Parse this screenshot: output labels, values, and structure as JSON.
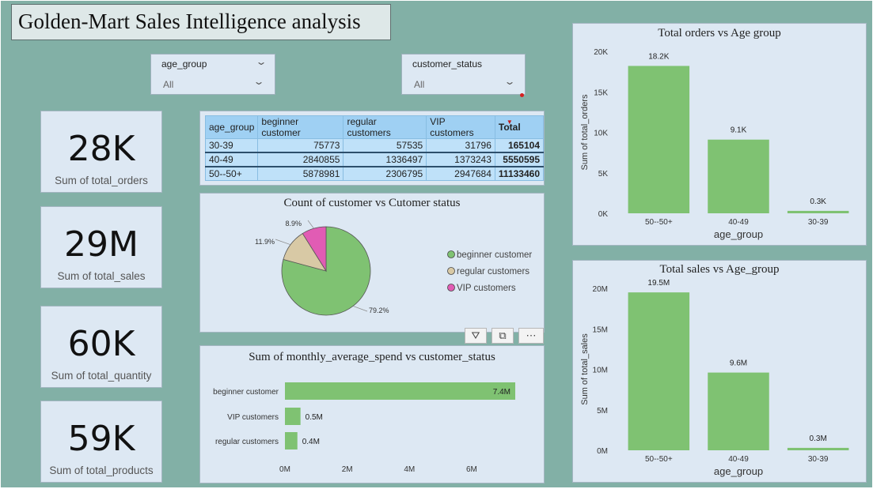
{
  "header": {
    "title": "Golden-Mart Sales Intelligence analysis"
  },
  "slicers": [
    {
      "label": "age_group",
      "value": "All"
    },
    {
      "label": "customer_status",
      "value": "All"
    }
  ],
  "kpis": [
    {
      "value": "28K",
      "caption": "Sum of total_orders"
    },
    {
      "value": "29M",
      "caption": "Sum of total_sales"
    },
    {
      "value": "60K",
      "caption": "Sum of total_quantity"
    },
    {
      "value": "59K",
      "caption": "Sum of total_products"
    }
  ],
  "matrix": {
    "headers": [
      "age_group",
      "beginner customer",
      "regular customers",
      "VIP customers",
      "Total"
    ],
    "rows": [
      [
        "30-39",
        "75773",
        "57535",
        "31796",
        "165104"
      ],
      [
        "40-49",
        "2840855",
        "1336497",
        "1373243",
        "5550595"
      ],
      [
        "50--50+",
        "5878981",
        "2306795",
        "2947684",
        "11133460"
      ]
    ]
  },
  "visual_controls": {
    "filter_icon": "filter-icon",
    "focus_icon": "focus-mode-icon",
    "more_icon": "more-options-icon"
  },
  "colors": {
    "green": "#7fc272",
    "tan": "#d8c9a5",
    "pink": "#e15cb4",
    "panel": "#dde8f3",
    "background": "#82b0a6"
  },
  "chart_data": [
    {
      "type": "bar",
      "title": "Total orders vs Age group",
      "xlabel": "age_group",
      "ylabel": "Sum of total_orders",
      "categories": [
        "50--50+",
        "40-49",
        "30-39"
      ],
      "values": [
        18200,
        9100,
        300
      ],
      "data_labels": [
        "18.2K",
        "9.1K",
        "0.3K"
      ],
      "y_ticks": [
        0,
        5000,
        10000,
        15000,
        20000
      ],
      "y_tick_labels": [
        "0K",
        "5K",
        "10K",
        "15K",
        "20K"
      ],
      "ylim": [
        0,
        20000
      ],
      "grid": false
    },
    {
      "type": "bar",
      "title": "Total sales vs Age_group",
      "xlabel": "age_group",
      "ylabel": "Sum of total_sales",
      "categories": [
        "50--50+",
        "40-49",
        "30-39"
      ],
      "values": [
        19500000,
        9600000,
        300000
      ],
      "data_labels": [
        "19.5M",
        "9.6M",
        "0.3M"
      ],
      "y_ticks": [
        0,
        5000000,
        10000000,
        15000000,
        20000000
      ],
      "y_tick_labels": [
        "0M",
        "5M",
        "10M",
        "15M",
        "20M"
      ],
      "ylim": [
        0,
        20000000
      ],
      "grid": false
    },
    {
      "type": "pie",
      "title": "Count of customer vs Cutomer status",
      "categories": [
        "beginner customer",
        "regular customers",
        "VIP customers"
      ],
      "values": [
        79.2,
        11.9,
        8.9
      ],
      "data_labels": [
        "79.2%",
        "11.9%",
        "8.9%"
      ],
      "colors": [
        "#7fc272",
        "#d8c9a5",
        "#e15cb4"
      ],
      "legend": "right"
    },
    {
      "type": "bar",
      "orientation": "horizontal",
      "title": "Sum of monthly_average_spend vs customer_status",
      "categories": [
        "beginner customer",
        "VIP customers",
        "regular customers"
      ],
      "values": [
        7400000,
        500000,
        400000
      ],
      "data_labels": [
        "7.4M",
        "0.5M",
        "0.4M"
      ],
      "x_ticks": [
        0,
        2000000,
        4000000,
        6000000
      ],
      "x_tick_labels": [
        "0M",
        "2M",
        "4M",
        "6M"
      ],
      "xlim": [
        0,
        7400000
      ],
      "grid": false
    }
  ]
}
